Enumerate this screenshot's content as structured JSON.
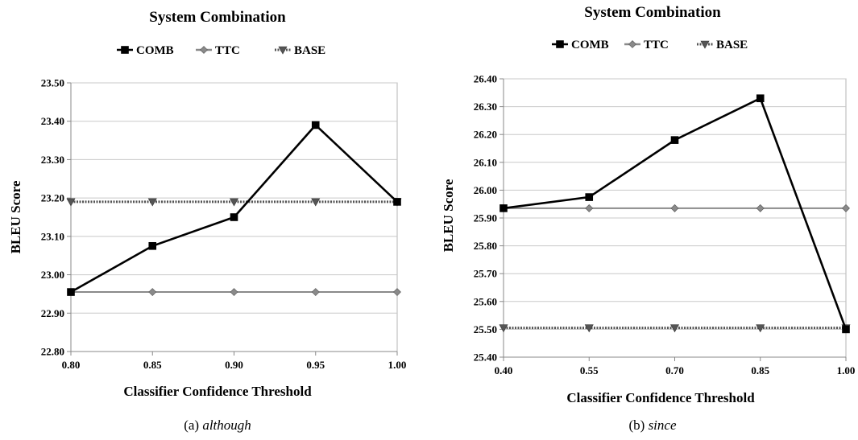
{
  "chart_data": [
    {
      "type": "line",
      "title": "System Combination",
      "xlabel": "Classifier Confidence Threshold",
      "ylabel": "BLEU Score",
      "x": [
        "0.80",
        "0.85",
        "0.90",
        "0.95",
        "1.00"
      ],
      "ylim": [
        22.8,
        23.5
      ],
      "yticks": [
        "22.80",
        "22.90",
        "23.00",
        "23.10",
        "23.20",
        "23.30",
        "23.40",
        "23.50"
      ],
      "grid": true,
      "legend_position": "top",
      "caption_prefix": "(a)",
      "caption_word": "although",
      "series": [
        {
          "name": "COMB",
          "values": [
            22.955,
            23.075,
            23.15,
            23.39,
            23.19
          ],
          "color": "#000000",
          "marker": "square",
          "style": "solid"
        },
        {
          "name": "TTC",
          "values": [
            22.955,
            22.955,
            22.955,
            22.955,
            22.955
          ],
          "color": "#8a8a8a",
          "marker": "diamond",
          "style": "solid"
        },
        {
          "name": "BASE",
          "values": [
            23.19,
            23.19,
            23.19,
            23.19,
            23.19
          ],
          "color": "#555555",
          "marker": "triangle-down",
          "style": "dotted"
        }
      ]
    },
    {
      "type": "line",
      "title": "System Combination",
      "xlabel": "Classifier Confidence Threshold",
      "ylabel": "BLEU Score",
      "x": [
        "0.40",
        "0.55",
        "0.70",
        "0.85",
        "1.00"
      ],
      "ylim": [
        25.4,
        26.4
      ],
      "yticks": [
        "25.40",
        "25.50",
        "25.60",
        "25.70",
        "25.80",
        "25.90",
        "26.00",
        "26.10",
        "26.20",
        "26.30",
        "26.40"
      ],
      "grid": true,
      "legend_position": "top",
      "caption_prefix": "(b)",
      "caption_word": "since",
      "series": [
        {
          "name": "COMB",
          "values": [
            25.935,
            25.975,
            26.18,
            26.33,
            25.5
          ],
          "color": "#000000",
          "marker": "square",
          "style": "solid"
        },
        {
          "name": "TTC",
          "values": [
            25.935,
            25.935,
            25.935,
            25.935,
            25.935
          ],
          "color": "#8a8a8a",
          "marker": "diamond",
          "style": "solid"
        },
        {
          "name": "BASE",
          "values": [
            25.505,
            25.505,
            25.505,
            25.505,
            25.505
          ],
          "color": "#555555",
          "marker": "triangle-down",
          "style": "dotted"
        }
      ]
    }
  ]
}
